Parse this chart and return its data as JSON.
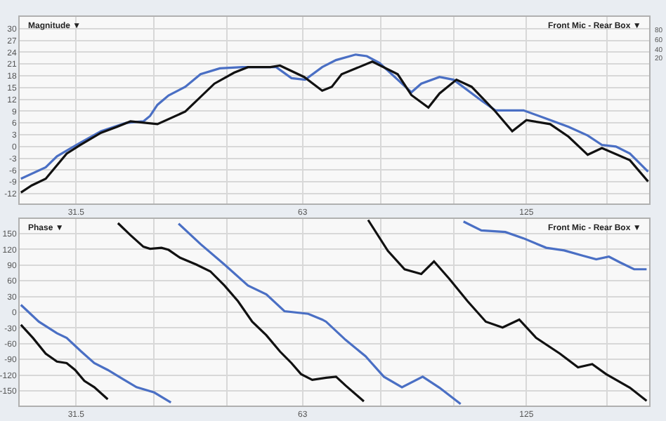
{
  "chart_data": [
    {
      "type": "line",
      "title": "Magnitude ▼",
      "annotations": [
        "Front Mic - Rear Box ▼",
        "80",
        "60",
        "40",
        "20"
      ],
      "log": "x",
      "grid": true,
      "xlim": [
        26.5,
        182
      ],
      "xticks": [
        31.5,
        {
          "value": 40,
          "label": null
        },
        {
          "value": 50,
          "label": null
        },
        63,
        {
          "value": 80,
          "label": null
        },
        {
          "value": 100,
          "label": null
        },
        125,
        {
          "value": 160,
          "label": null
        }
      ],
      "ylim": [
        -14.5,
        33
      ],
      "yticks": [
        -12,
        -9,
        -6,
        -3,
        0,
        3,
        6,
        9,
        12,
        15,
        18,
        21,
        24,
        27,
        30
      ],
      "series": [
        {
          "color": "#4a6fc4",
          "x": [
            26.6,
            28.7,
            29.7,
            31.0,
            32.0,
            34.0,
            36.7,
            38.7,
            39.5,
            40.4,
            41.8,
            44.0,
            46.1,
            48.9,
            52.4,
            58.1,
            60.9,
            63.5,
            66.9,
            69.8,
            74.1,
            76.7,
            79.7,
            84.3,
            87.9,
            90.6,
            95.8,
            100,
            108.9,
            113.7,
            123.9,
            132.8,
            142.2,
            150.8,
            157.5,
            164.4,
            171.6,
            181.4
          ],
          "values": [
            -8.2,
            -5.3,
            -2.5,
            -0.4,
            1.1,
            3.9,
            6,
            6.4,
            7.8,
            10.6,
            13,
            15.2,
            18.4,
            19.9,
            20.2,
            20.2,
            17.4,
            17,
            20.2,
            22,
            23.4,
            23,
            21.3,
            17,
            13.8,
            16,
            17.7,
            17,
            11.7,
            9.2,
            9.2,
            7.1,
            5,
            2.8,
            0.4,
            0,
            -1.8,
            -6.4
          ]
        },
        {
          "color": "#111111",
          "x": [
            26.6,
            27.5,
            28.7,
            30.6,
            31.9,
            34.0,
            35.7,
            37.2,
            40.4,
            44.0,
            48.1,
            51.1,
            53.3,
            57.1,
            58.8,
            63.3,
            66.9,
            68.9,
            71.0,
            78.0,
            84.3,
            87.9,
            92.6,
            95.8,
            100.9,
            105.7,
            113.7,
            119.7,
            125,
            134.4,
            142.2,
            150.8,
            157.5,
            171.6,
            181.4
          ],
          "values": [
            -11.7,
            -9.9,
            -8.2,
            -1.8,
            0.4,
            3.5,
            5,
            6.4,
            5.7,
            8.9,
            16,
            18.8,
            20.2,
            20.2,
            20.6,
            17.7,
            14.2,
            15.2,
            18.4,
            21.6,
            18.4,
            13.1,
            9.9,
            13.5,
            17,
            15.2,
            8.9,
            3.9,
            6.7,
            5.7,
            2.5,
            -2.1,
            -0.4,
            -3.5,
            -8.9
          ]
        }
      ]
    },
    {
      "type": "line",
      "title": "Phase ▼",
      "annotations": [
        "Front Mic - Rear Box ▼"
      ],
      "log": "x",
      "grid": true,
      "xlim": [
        26.5,
        182
      ],
      "xticks": [
        31.5,
        {
          "value": 40,
          "label": null
        },
        {
          "value": 50,
          "label": null
        },
        63,
        {
          "value": 80,
          "label": null
        },
        {
          "value": 100,
          "label": null
        },
        125,
        {
          "value": 160,
          "label": null
        }
      ],
      "ylim": [
        -178,
        178
      ],
      "yticks": [
        -150,
        -120,
        -90,
        -60,
        -30,
        0,
        30,
        60,
        90,
        120,
        150
      ],
      "series": [
        {
          "color": "#4a6fc4",
          "x": [
            26.6,
            28.1,
            29.7,
            30.6,
            32.0,
            33.3,
            34.7,
            36.3,
            37.9,
            40.0,
            42.1,
            42.6,
            43.1,
            46.1,
            49.6,
            53.3,
            56.4,
            59.6,
            64.1,
            66.9,
            67.7,
            71.9,
            76.4,
            80.8,
            85.4,
            91.0,
            95.8,
            102.2,
            102.6,
            103.1,
            108.9,
            117.2,
            123.9,
            132.8,
            140.3,
            148.4,
            154.8,
            160.9,
            166.5,
            173.8,
            180.6
          ],
          "values": [
            14,
            -18,
            -40,
            -49,
            -75,
            -97,
            -110,
            -127,
            -143,
            -153,
            -172,
            null,
            169,
            130,
            91,
            51,
            34,
            2,
            -3,
            -14,
            -18,
            -53,
            -84,
            -123,
            -143,
            -123,
            -144,
            -175,
            null,
            173,
            156,
            153,
            141,
            123,
            118,
            108,
            101,
            106,
            95,
            82,
            82
          ]
        },
        {
          "color": "#111111",
          "x": [
            26.6,
            27.6,
            28.7,
            29.7,
            30.6,
            31.4,
            32.3,
            33.3,
            34.7,
            35.2,
            35.8,
            37.2,
            38.7,
            39.5,
            40.9,
            41.8,
            43.3,
            45.5,
            47.5,
            49.6,
            51.7,
            54.0,
            56.4,
            58.8,
            60.9,
            62.7,
            64.9,
            67.7,
            69.8,
            71.9,
            76.0,
            76.5,
            77.0,
            81.8,
            86.1,
            90.6,
            94.2,
            98.7,
            104.4,
            110.4,
            116.2,
            122.3,
            128.8,
            138.5,
            146.4,
            152.9,
            159.5,
            171.6,
            180.6
          ],
          "values": [
            -24,
            -49,
            -79,
            -94,
            -97,
            -110,
            -131,
            -143,
            -166,
            null,
            170,
            147,
            125,
            121,
            123,
            119,
            104,
            91,
            78,
            51,
            21,
            -18,
            -44,
            -75,
            -97,
            -118,
            -129,
            -125,
            -123,
            -140,
            -170,
            null,
            176,
            117,
            82,
            73,
            97,
            64,
            21,
            -18,
            -29,
            -14,
            -49,
            -79,
            -105,
            -99,
            -118,
            -144,
            -169
          ]
        }
      ]
    }
  ]
}
